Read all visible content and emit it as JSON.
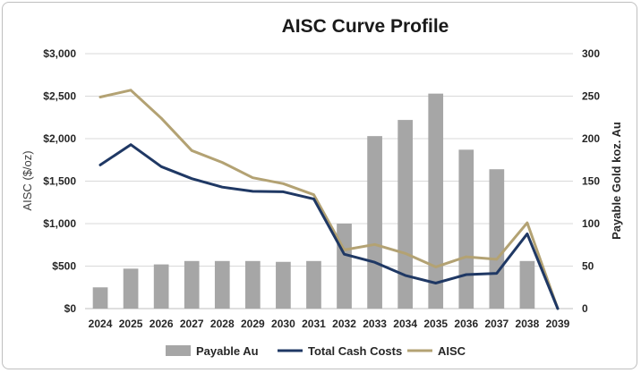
{
  "chart_data": {
    "type": "bar+line",
    "title": "AISC Curve Profile",
    "categories": [
      "2024",
      "2025",
      "2026",
      "2027",
      "2028",
      "2029",
      "2030",
      "2031",
      "2032",
      "2033",
      "2034",
      "2035",
      "2036",
      "2037",
      "2038",
      "2039"
    ],
    "y_left": {
      "label": "AISC ($/oz)",
      "range": [
        0,
        3000
      ],
      "ticks": [
        0,
        500,
        1000,
        1500,
        2000,
        2500,
        3000
      ],
      "tick_labels": [
        "$0",
        "$500",
        "$1,000",
        "$1,500",
        "$2,000",
        "$2,500",
        "$3,000"
      ]
    },
    "y_right": {
      "label": "Payable Gold koz. Au",
      "range": [
        0,
        300
      ],
      "ticks": [
        0,
        50,
        100,
        150,
        200,
        250,
        300
      ],
      "tick_labels": [
        "0",
        "50",
        "100",
        "150",
        "200",
        "250",
        "300"
      ]
    },
    "grid": true,
    "legend_position": "bottom",
    "series": [
      {
        "name": "Payable Au",
        "type": "bar",
        "axis": "right",
        "color": "#a6a6a6",
        "values": [
          25,
          47,
          52,
          56,
          56,
          56,
          55,
          56,
          100,
          203,
          222,
          253,
          187,
          164,
          56,
          0
        ]
      },
      {
        "name": "Total Cash Costs",
        "type": "line",
        "axis": "left",
        "color": "#1f3864",
        "values": [
          1690,
          1930,
          1670,
          1530,
          1430,
          1380,
          1375,
          1290,
          640,
          545,
          390,
          300,
          400,
          415,
          880,
          0
        ]
      },
      {
        "name": "AISC",
        "type": "line",
        "axis": "left",
        "color": "#b3a273",
        "values": [
          2490,
          2570,
          2240,
          1860,
          1720,
          1540,
          1470,
          1340,
          690,
          755,
          650,
          490,
          610,
          580,
          1010,
          0
        ]
      }
    ]
  }
}
